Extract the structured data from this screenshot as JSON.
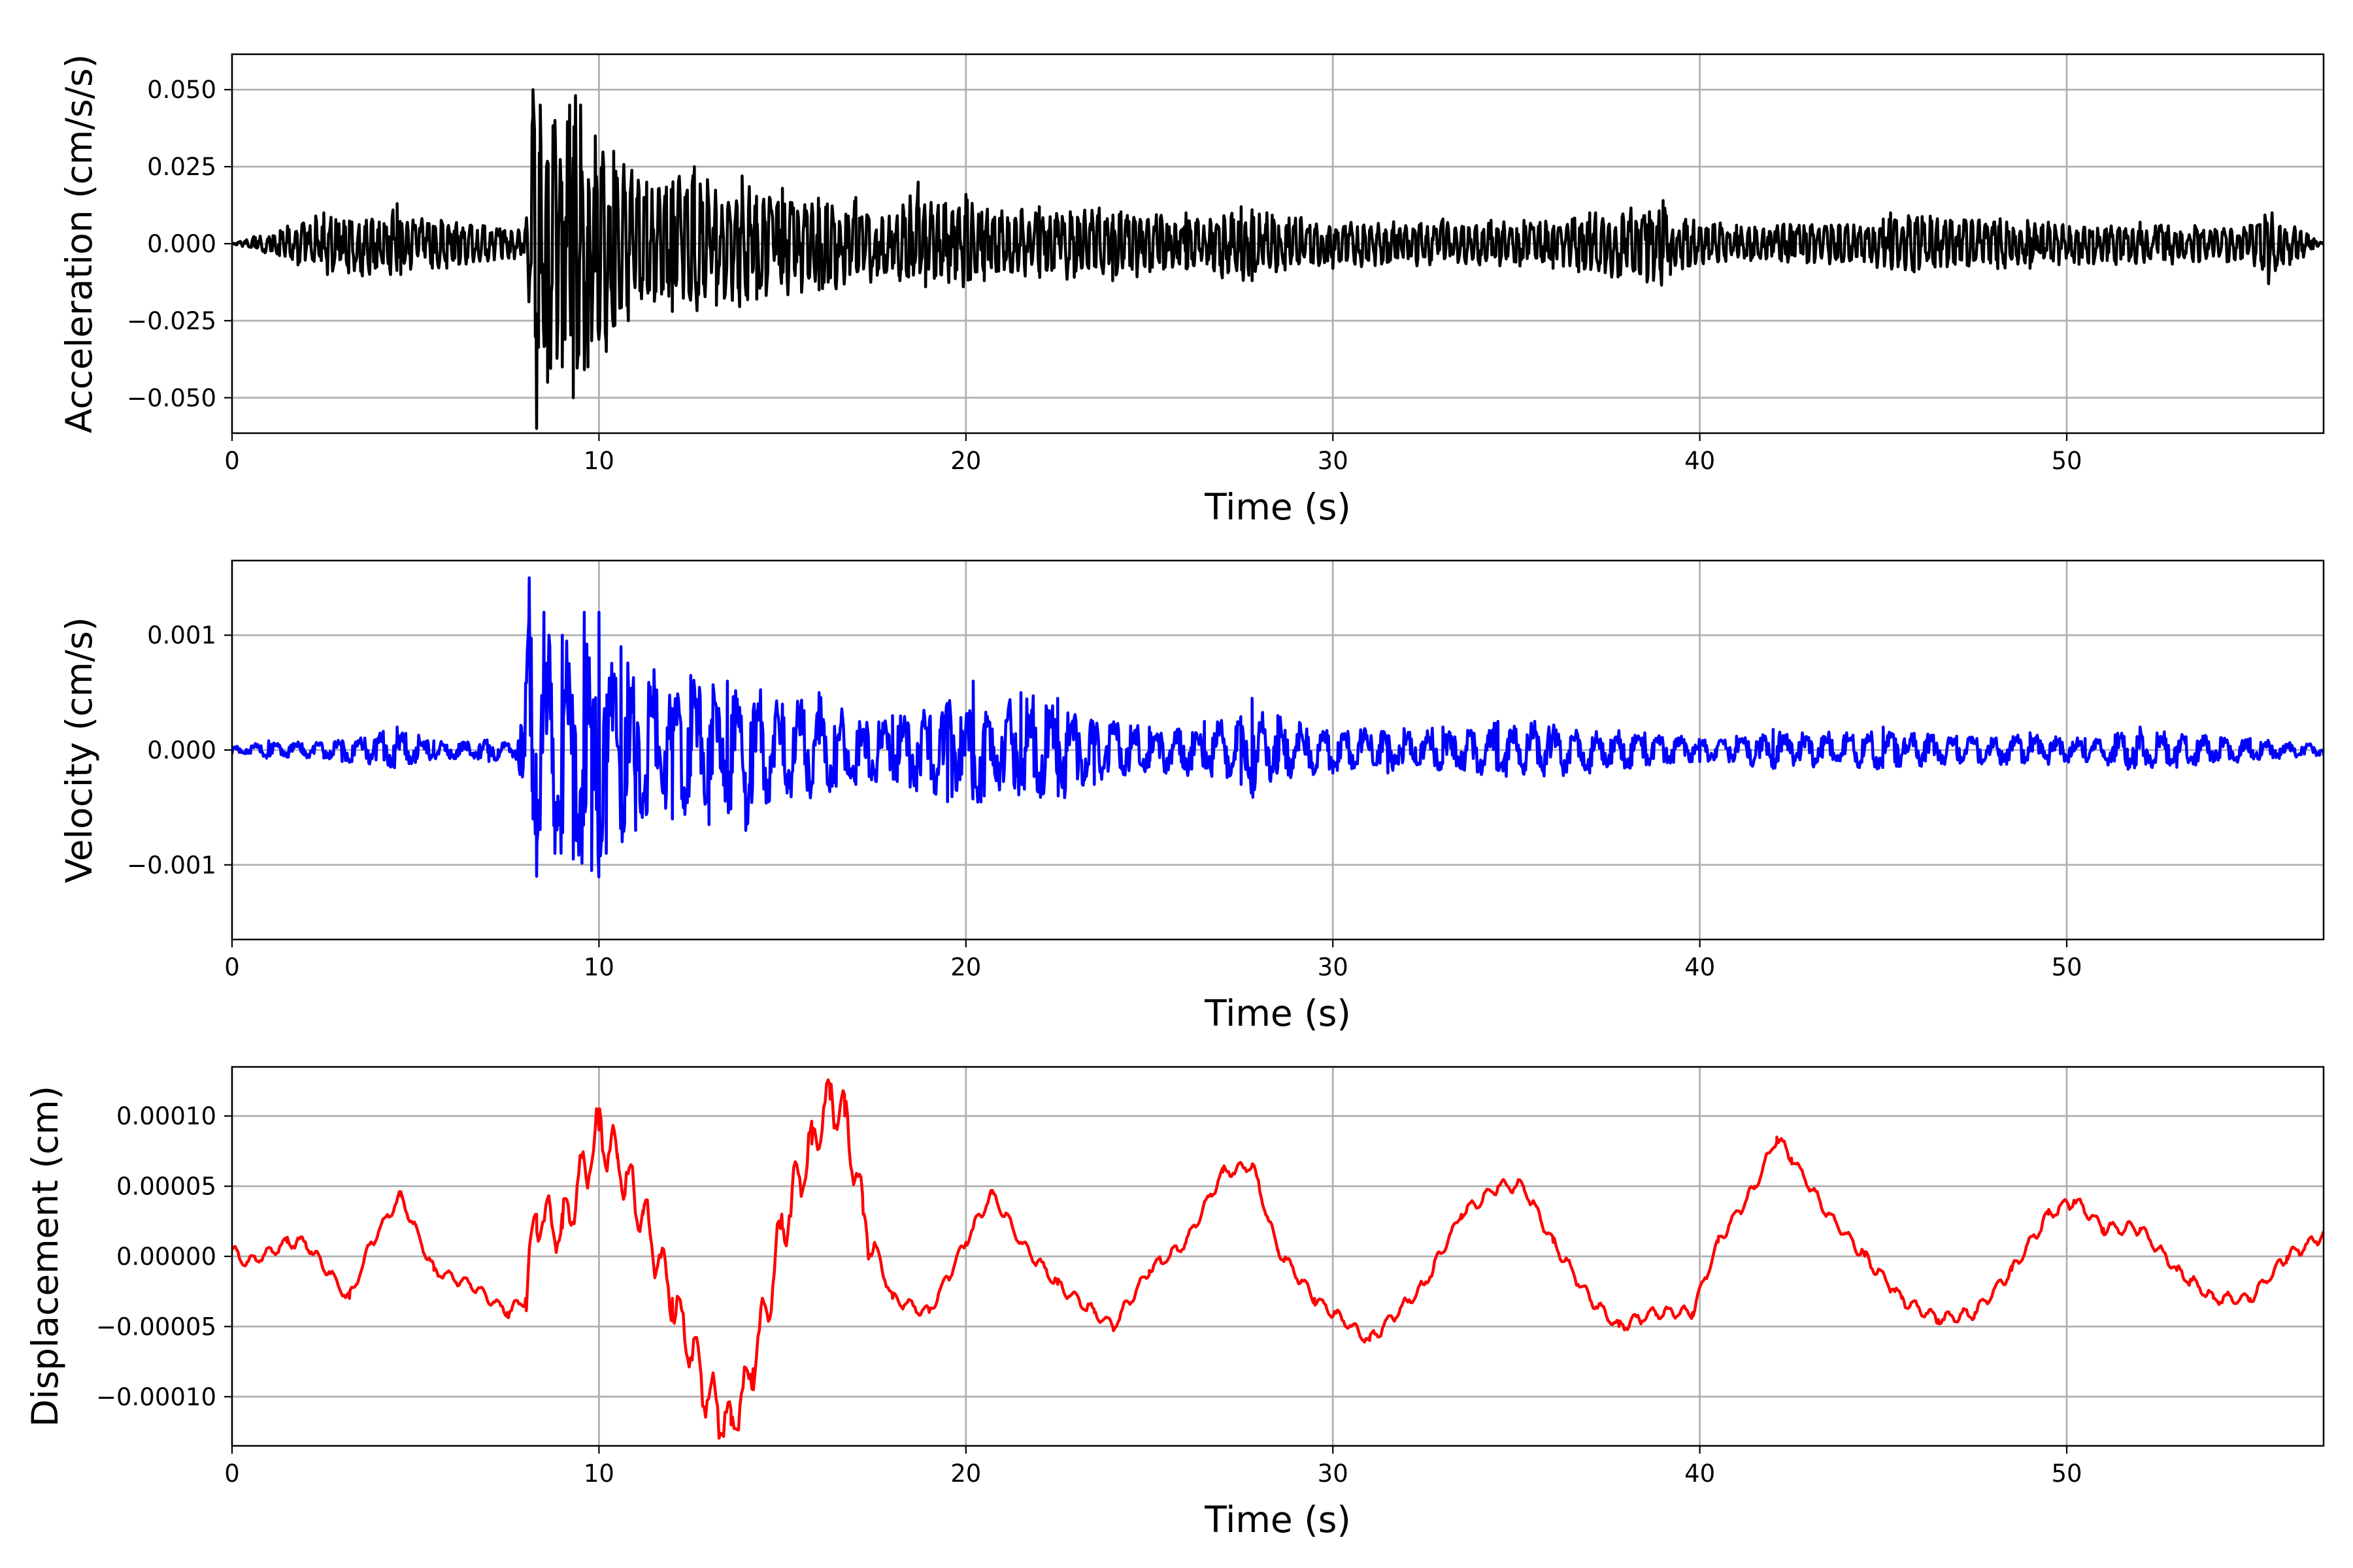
{
  "chart_data": [
    {
      "type": "line",
      "panel": "acceleration",
      "title": "",
      "xlabel": "Time (s)",
      "ylabel": "Acceleration (cm/s/s)",
      "xlim": [
        0,
        57
      ],
      "ylim": [
        -0.0615,
        0.0615
      ],
      "xticks": [
        0,
        10,
        20,
        30,
        40,
        50
      ],
      "xtick_labels": [
        "0",
        "10",
        "20",
        "30",
        "40",
        "50"
      ],
      "yticks": [
        0.05,
        0.025,
        0.0,
        -0.025,
        -0.05
      ],
      "ytick_labels": [
        "0.050",
        "0.025",
        "0.000",
        "−0.025",
        "−0.050"
      ],
      "grid": true,
      "color": "#000000",
      "series": [
        {
          "x": [
            0,
            2.5,
            2.6,
            4.5,
            4.6,
            8.0,
            8.2,
            8.3,
            8.4,
            8.6,
            8.8,
            9.0,
            9.2,
            9.3,
            9.5,
            9.7,
            9.9,
            10.2,
            10.4,
            10.8,
            11.3,
            12.0,
            12.6,
            13.2,
            13.9,
            14.3,
            15.0,
            16.0,
            17.0,
            18.2,
            18.7,
            18.9,
            20.0,
            20.5,
            22.0,
            24.0,
            26.0,
            27.5,
            27.8,
            28.2,
            30.0,
            33.0,
            36.0,
            37.0,
            39.0,
            39.2,
            41.0,
            45.0,
            45.2,
            49.0,
            49.5,
            52.0,
            55.0,
            55.5,
            57.0
          ],
          "y": [
            0.0,
            0.01,
            -0.01,
            0.013,
            -0.01,
            0.005,
            0.05,
            -0.06,
            0.045,
            -0.045,
            0.04,
            -0.04,
            0.045,
            -0.05,
            0.045,
            -0.04,
            0.035,
            -0.035,
            0.03,
            -0.025,
            0.02,
            -0.022,
            0.025,
            -0.02,
            0.022,
            -0.018,
            0.018,
            -0.015,
            0.015,
            -0.012,
            0.02,
            -0.014,
            0.016,
            -0.012,
            0.012,
            -0.012,
            0.01,
            0.012,
            -0.012,
            0.01,
            -0.008,
            0.008,
            -0.008,
            0.01,
            0.014,
            -0.01,
            0.006,
            0.008,
            0.01,
            -0.008,
            0.007,
            0.007,
            0.006,
            -0.013,
            0.0
          ]
        }
      ]
    },
    {
      "type": "line",
      "panel": "velocity",
      "title": "",
      "xlabel": "Time (s)",
      "ylabel": "Velocity (cm/s)",
      "xlim": [
        0,
        57
      ],
      "ylim": [
        -0.00165,
        0.00165
      ],
      "xticks": [
        0,
        10,
        20,
        30,
        40,
        50
      ],
      "xtick_labels": [
        "0",
        "10",
        "20",
        "30",
        "40",
        "50"
      ],
      "yticks": [
        0.001,
        0.0,
        -0.001
      ],
      "ytick_labels": [
        "0.001",
        "0.000",
        "−0.001"
      ],
      "grid": true,
      "color": "#0000ff",
      "series": [
        {
          "x": [
            0,
            1.0,
            2.5,
            3.0,
            4.5,
            5.5,
            7.0,
            7.8,
            8.1,
            8.2,
            8.3,
            8.5,
            8.8,
            9.0,
            9.3,
            9.6,
            9.8,
            10.0,
            10.2,
            10.6,
            11.0,
            11.5,
            12.0,
            12.5,
            13.0,
            13.5,
            14.0,
            15.0,
            16.0,
            17.0,
            18.0,
            19.5,
            20.2,
            20.5,
            21.5,
            22.5,
            23.5,
            25.0,
            26.5,
            27.5,
            27.8,
            28.5,
            30.0,
            31.5,
            33.0,
            34.5,
            35.5,
            37.0,
            38.5,
            39.5,
            40.0,
            41.0,
            42.0,
            44.0,
            45.0,
            47.0,
            49.0,
            50.5,
            52.0,
            53.0,
            55.0,
            57.0
          ],
          "y": [
            -3e-05,
            8e-05,
            -7e-05,
            -0.0001,
            0.0002,
            8e-05,
            -0.0001,
            8e-05,
            0.0015,
            -0.0006,
            -0.0011,
            0.0012,
            -0.0009,
            0.001,
            -0.00095,
            0.0012,
            -0.00105,
            0.0012,
            -0.0009,
            0.0009,
            -0.0007,
            0.0007,
            -0.0006,
            0.00065,
            -0.00065,
            0.0006,
            -0.0007,
            0.0004,
            0.0005,
            -0.0003,
            0.0003,
            -0.00045,
            0.0006,
            -0.0004,
            0.0005,
            0.00045,
            -0.0003,
            0.0002,
            0.00025,
            -0.0003,
            0.00045,
            0.0003,
            -0.0002,
            -0.0002,
            0.0002,
            0.00025,
            0.00025,
            -0.0002,
            0.00015,
            0.00012,
            -0.0001,
            0.00012,
            0.00018,
            0.00015,
            0.0002,
            0.00012,
            0.00015,
            0.0001,
            0.0002,
            -0.00015,
            0.0001,
            -5e-05
          ]
        }
      ]
    },
    {
      "type": "line",
      "panel": "displacement",
      "title": "",
      "xlabel": "Time (s)",
      "ylabel": "Displacement (cm)",
      "xlim": [
        0,
        57
      ],
      "ylim": [
        -0.000135,
        0.000135
      ],
      "xticks": [
        0,
        10,
        20,
        30,
        40,
        50
      ],
      "xtick_labels": [
        "0",
        "10",
        "20",
        "30",
        "40",
        "50"
      ],
      "yticks": [
        0.0001,
        5e-05,
        0.0,
        -5e-05,
        -0.0001
      ],
      "ytick_labels": [
        "0.00010",
        "0.00005",
        "0.00000",
        "−0.00005",
        "−0.00010"
      ],
      "grid": true,
      "color": "#ff0000",
      "series": [
        {
          "x": [
            0,
            0.4,
            1.5,
            2.0,
            3.2,
            3.8,
            4.6,
            5.5,
            6.5,
            7.5,
            8.0,
            8.3,
            9.0,
            10.0,
            10.5,
            11.2,
            12.0,
            13.0,
            13.6,
            14.2,
            15.0,
            15.8,
            16.3,
            16.7,
            17.2,
            18.0,
            19.0,
            20.0,
            20.7,
            21.5,
            22.5,
            23.5,
            24.0,
            25.0,
            26.0,
            27.0,
            27.8,
            28.5,
            29.5,
            30.5,
            31.0,
            32.5,
            33.5,
            34.5,
            35.2,
            36.0,
            37.0,
            37.8,
            38.8,
            39.8,
            40.5,
            41.5,
            42.1,
            42.5,
            43.5,
            44.5,
            45.5,
            46.5,
            47.5,
            48.5,
            49.5,
            50.2,
            51.0,
            52.0,
            53.0,
            54.0,
            55.0,
            56.0,
            57.0
          ],
          "y": [
            5e-06,
            -5e-06,
            1e-05,
            1e-05,
            -3e-05,
            1e-05,
            4.3e-05,
            -1e-05,
            -2e-05,
            -4e-05,
            -3e-05,
            3e-05,
            2e-05,
            9e-05,
            7e-05,
            3e-05,
            -3e-05,
            -0.0001,
            -0.00012,
            -8e-05,
            2e-05,
            8e-05,
            0.000112,
            0.0001,
            3e-05,
            -3e-05,
            -4e-05,
            1e-05,
            4.5e-05,
            1e-05,
            -2e-05,
            -4e-05,
            -5e-05,
            -1e-05,
            1e-05,
            6e-05,
            6.5e-05,
            5e-06,
            -3e-05,
            -5e-05,
            -6e-05,
            -2e-05,
            3e-05,
            5e-05,
            5e-05,
            1e-05,
            -3e-05,
            -5e-05,
            -4e-05,
            -4e-05,
            1e-05,
            5e-05,
            8.5e-05,
            7e-05,
            3e-05,
            0.0,
            -3e-05,
            -4.5e-05,
            -4e-05,
            -1e-05,
            3e-05,
            4e-05,
            2e-05,
            2e-05,
            -1e-05,
            -3e-05,
            -3e-05,
            0.0,
            1.5e-05
          ]
        }
      ]
    }
  ]
}
